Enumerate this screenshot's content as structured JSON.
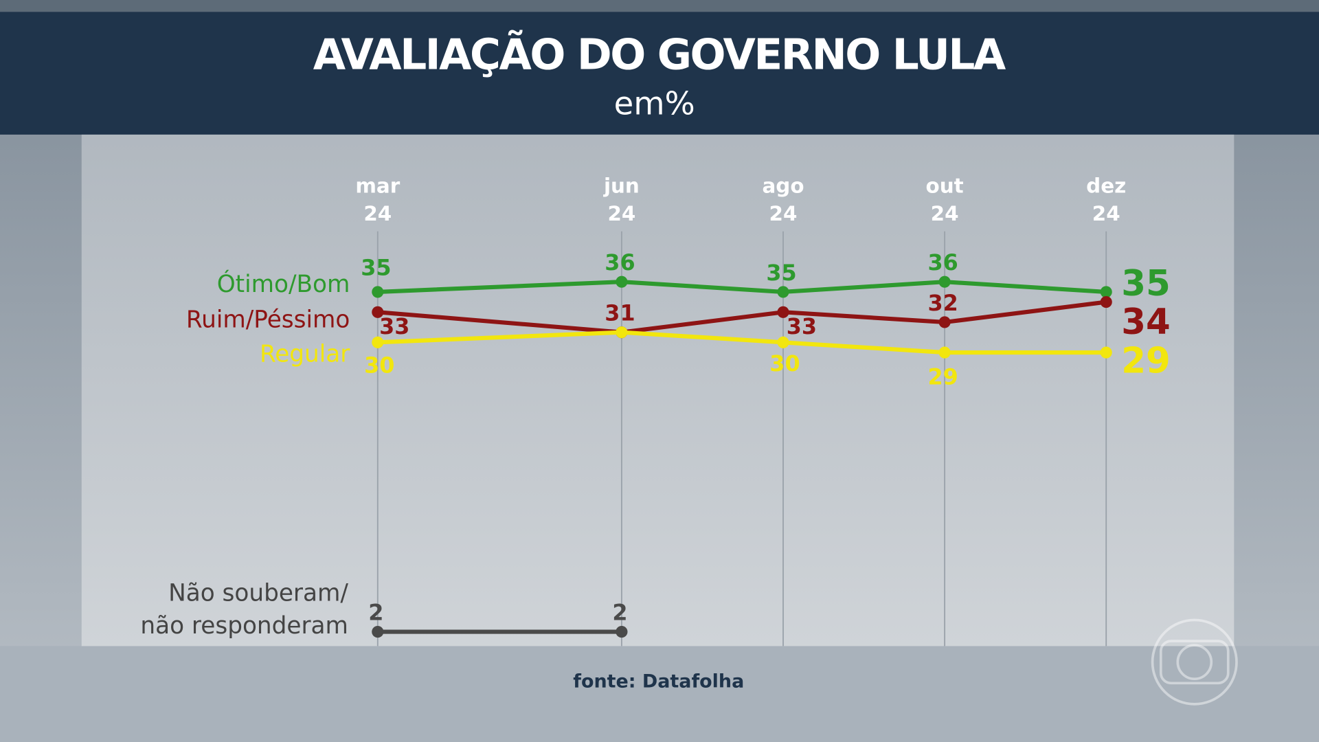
{
  "header": {
    "title": "AVALIAÇÃO DO GOVERNO LULA",
    "subtitle": "em%"
  },
  "source": "fonte: Datafolha",
  "chart_data": {
    "type": "line",
    "title": "AVALIAÇÃO DO GOVERNO LULA",
    "subtitle": "em%",
    "categories": [
      [
        "mar",
        "24"
      ],
      [
        "jun",
        "24"
      ],
      [
        "ago",
        "24"
      ],
      [
        "out",
        "24"
      ],
      [
        "dez",
        "24"
      ]
    ],
    "series": [
      {
        "name": "Ótimo/Bom",
        "color": "#2e9a2e",
        "values": [
          35,
          36,
          35,
          36,
          35
        ],
        "labels": [
          "35",
          "36",
          "35",
          "36",
          "35"
        ]
      },
      {
        "name": "Ruim/Péssimo",
        "color": "#8e1414",
        "values": [
          33,
          31,
          33,
          32,
          34
        ],
        "labels": [
          "33",
          "31",
          "33",
          "32",
          "34"
        ]
      },
      {
        "name": "Regular",
        "color": "#f2e60e",
        "values": [
          30,
          31,
          30,
          29,
          29
        ],
        "labels": [
          "30",
          null,
          "30",
          "29",
          "29"
        ]
      }
    ],
    "secondary": {
      "name": "Não souberam/ não responderam",
      "name_lines": [
        "Não souberam/",
        "não responderam"
      ],
      "color": "#4a4a4a",
      "values": [
        2,
        2,
        null,
        null,
        null
      ],
      "labels": [
        "2",
        "2",
        null,
        null,
        null
      ]
    },
    "legend": "left",
    "grid": "vertical"
  }
}
